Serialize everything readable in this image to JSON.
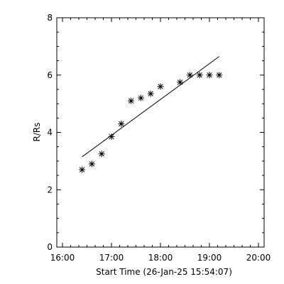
{
  "chart_data": {
    "type": "scatter",
    "xlabel": "Start Time (26-Jan-25 15:54:07)",
    "ylabel": "R/Rs",
    "xlim": [
      "16:00",
      "20:00"
    ],
    "ylim": [
      0,
      8
    ],
    "x_ticks": [
      "16:00",
      "17:00",
      "18:00",
      "19:00",
      "20:00"
    ],
    "y_ticks": [
      "0",
      "2",
      "4",
      "6",
      "8"
    ],
    "grid": false,
    "marker": "asterisk",
    "series": [
      {
        "points": [
          {
            "x": "16:24",
            "y": 2.7
          },
          {
            "x": "16:36",
            "y": 2.9
          },
          {
            "x": "16:48",
            "y": 3.25
          },
          {
            "x": "17:00",
            "y": 3.85
          },
          {
            "x": "17:12",
            "y": 4.3
          },
          {
            "x": "17:24",
            "y": 5.1
          },
          {
            "x": "17:36",
            "y": 5.2
          },
          {
            "x": "17:48",
            "y": 5.35
          },
          {
            "x": "18:00",
            "y": 5.6
          },
          {
            "x": "18:24",
            "y": 5.75
          },
          {
            "x": "18:36",
            "y": 6.0
          },
          {
            "x": "18:48",
            "y": 6.0
          },
          {
            "x": "19:00",
            "y": 6.0
          },
          {
            "x": "19:12",
            "y": 6.0
          }
        ]
      }
    ],
    "fit_line": [
      {
        "x": "16:24",
        "y": 3.15
      },
      {
        "x": "19:12",
        "y": 6.65
      }
    ]
  }
}
